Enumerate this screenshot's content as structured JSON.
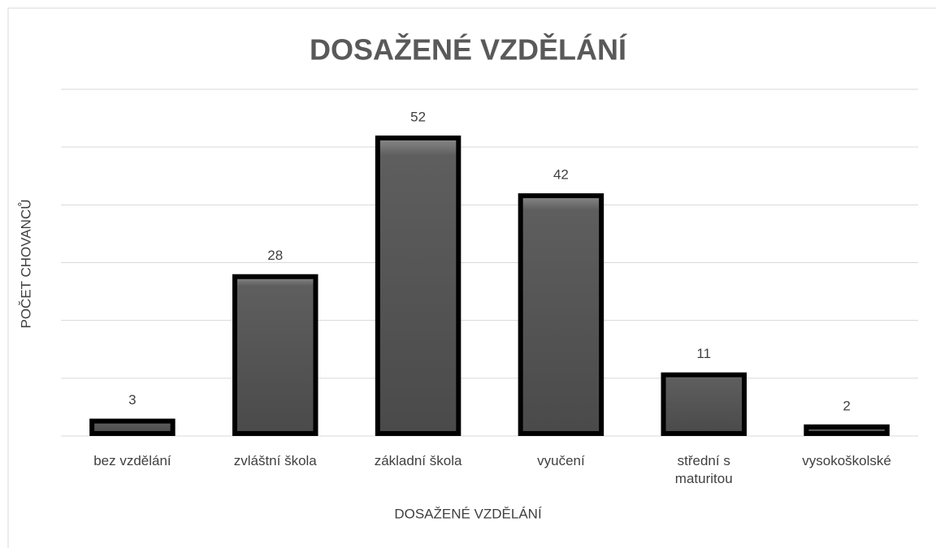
{
  "chart_data": {
    "type": "bar",
    "title": "DOSAŽENÉ VZDĚLÁNÍ",
    "x_label": "DOSAŽENÉ VZDĚLÁNÍ",
    "y_label": "POČET CHOVANCŮ",
    "categories": [
      "bez vzdělání",
      "zvláštní škola",
      "základní škola",
      "vyučení",
      "střední s maturitou",
      "vysokoškolské"
    ],
    "values": [
      3,
      28,
      52,
      42,
      11,
      2
    ],
    "color": "#595959",
    "ylim": [
      0,
      60
    ],
    "yticks": [
      0,
      10,
      20,
      30,
      40,
      50,
      60
    ],
    "grid": true
  }
}
